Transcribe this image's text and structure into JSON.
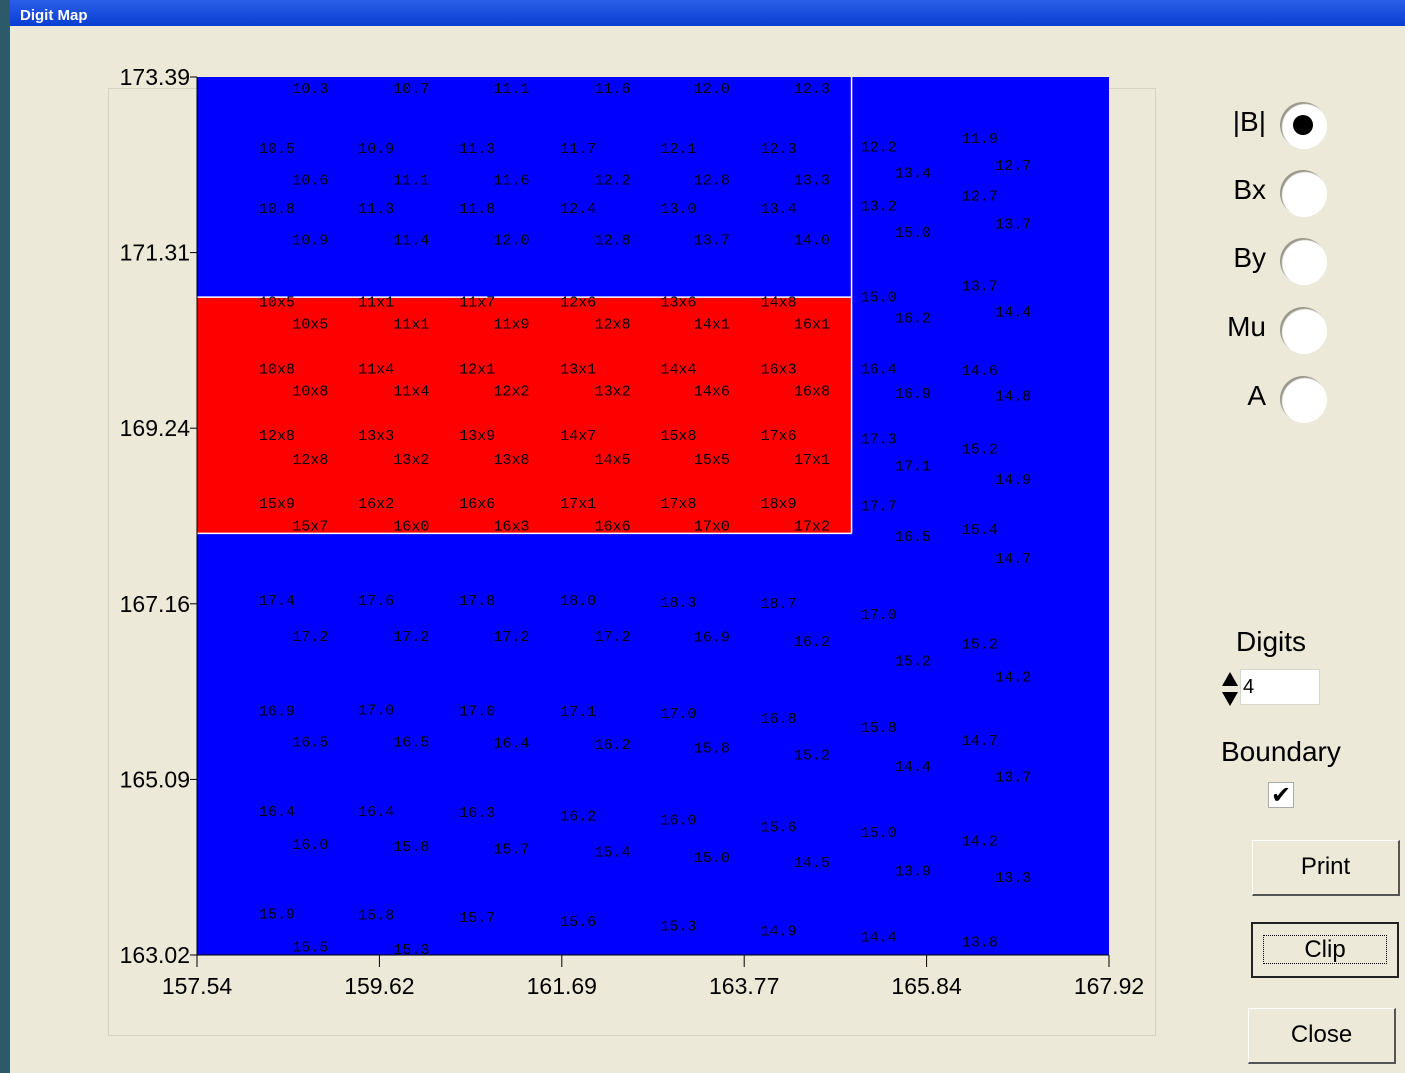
{
  "window": {
    "title": "Digit Map"
  },
  "radios": [
    {
      "label": "|B|",
      "selected": true
    },
    {
      "label": "Bx",
      "selected": false
    },
    {
      "label": "By",
      "selected": false
    },
    {
      "label": "Mu",
      "selected": false
    },
    {
      "label": "A",
      "selected": false
    }
  ],
  "digits": {
    "label": "Digits",
    "value": "4"
  },
  "boundary": {
    "label": "Boundary",
    "checked": true,
    "check_glyph": "✔"
  },
  "buttons": {
    "print": "Print",
    "clip": "Clip",
    "close": "Close"
  },
  "colors": {
    "field": "#0000ff",
    "highlight": "#ff0000",
    "boundary": "#ffffff"
  },
  "chart_data": {
    "type": "heatmap",
    "xlim": [
      157.54,
      167.92
    ],
    "ylim": [
      163.02,
      173.39
    ],
    "xticks": [
      "157.54",
      "159.62",
      "161.69",
      "163.77",
      "165.84",
      "167.92"
    ],
    "yticks": [
      "173.39",
      "171.31",
      "169.24",
      "167.16",
      "165.09",
      "163.02"
    ],
    "highlight_region": {
      "x": [
        157.54,
        164.99
      ],
      "y": [
        168.0,
        170.79
      ]
    },
    "boundary_x": 164.99,
    "cells": [
      {
        "x": 158.83,
        "y": 173.26,
        "t": "10.3"
      },
      {
        "x": 159.98,
        "y": 173.26,
        "t": "10.7"
      },
      {
        "x": 161.12,
        "y": 173.26,
        "t": "11.1"
      },
      {
        "x": 162.27,
        "y": 173.26,
        "t": "11.6"
      },
      {
        "x": 163.4,
        "y": 173.26,
        "t": "12.0"
      },
      {
        "x": 164.54,
        "y": 173.26,
        "t": "12.3"
      },
      {
        "x": 158.45,
        "y": 172.55,
        "t": "10.5"
      },
      {
        "x": 159.58,
        "y": 172.55,
        "t": "10.9"
      },
      {
        "x": 160.73,
        "y": 172.55,
        "t": "11.3"
      },
      {
        "x": 161.88,
        "y": 172.55,
        "t": "11.7"
      },
      {
        "x": 163.02,
        "y": 172.55,
        "t": "12.1"
      },
      {
        "x": 164.16,
        "y": 172.55,
        "t": "12.3"
      },
      {
        "x": 165.3,
        "y": 172.57,
        "t": "12.2"
      },
      {
        "x": 166.45,
        "y": 172.67,
        "t": "11.9"
      },
      {
        "x": 158.83,
        "y": 172.18,
        "t": "10.6"
      },
      {
        "x": 159.98,
        "y": 172.18,
        "t": "11.1"
      },
      {
        "x": 161.12,
        "y": 172.18,
        "t": "11.6"
      },
      {
        "x": 162.27,
        "y": 172.18,
        "t": "12.2"
      },
      {
        "x": 163.4,
        "y": 172.18,
        "t": "12.8"
      },
      {
        "x": 164.54,
        "y": 172.18,
        "t": "13.3"
      },
      {
        "x": 165.69,
        "y": 172.26,
        "t": "13.4"
      },
      {
        "x": 166.83,
        "y": 172.35,
        "t": "12.7"
      },
      {
        "x": 158.45,
        "y": 171.84,
        "t": "10.8"
      },
      {
        "x": 159.58,
        "y": 171.84,
        "t": "11.3"
      },
      {
        "x": 160.73,
        "y": 171.84,
        "t": "11.8"
      },
      {
        "x": 161.88,
        "y": 171.84,
        "t": "12.4"
      },
      {
        "x": 163.02,
        "y": 171.84,
        "t": "13.0"
      },
      {
        "x": 164.16,
        "y": 171.84,
        "t": "13.4"
      },
      {
        "x": 165.3,
        "y": 171.87,
        "t": "13.2"
      },
      {
        "x": 166.45,
        "y": 171.99,
        "t": "12.7"
      },
      {
        "x": 158.83,
        "y": 171.47,
        "t": "10.9"
      },
      {
        "x": 159.98,
        "y": 171.47,
        "t": "11.4"
      },
      {
        "x": 161.12,
        "y": 171.47,
        "t": "12.0"
      },
      {
        "x": 162.27,
        "y": 171.47,
        "t": "12.8"
      },
      {
        "x": 163.4,
        "y": 171.47,
        "t": "13.7"
      },
      {
        "x": 164.54,
        "y": 171.47,
        "t": "14.0"
      },
      {
        "x": 165.69,
        "y": 171.56,
        "t": "15.0"
      },
      {
        "x": 166.83,
        "y": 171.66,
        "t": "13.7"
      },
      {
        "x": 158.45,
        "y": 170.74,
        "t": "10x5"
      },
      {
        "x": 159.58,
        "y": 170.74,
        "t": "11x1"
      },
      {
        "x": 160.73,
        "y": 170.74,
        "t": "11x7"
      },
      {
        "x": 161.88,
        "y": 170.74,
        "t": "12x6"
      },
      {
        "x": 163.02,
        "y": 170.74,
        "t": "13x6"
      },
      {
        "x": 164.16,
        "y": 170.74,
        "t": "14x8"
      },
      {
        "x": 165.3,
        "y": 170.8,
        "t": "15.0"
      },
      {
        "x": 166.45,
        "y": 170.93,
        "t": "13.7"
      },
      {
        "x": 158.83,
        "y": 170.48,
        "t": "10x5"
      },
      {
        "x": 159.98,
        "y": 170.48,
        "t": "11x1"
      },
      {
        "x": 161.12,
        "y": 170.48,
        "t": "11x9"
      },
      {
        "x": 162.27,
        "y": 170.48,
        "t": "12x8"
      },
      {
        "x": 163.4,
        "y": 170.48,
        "t": "14x1"
      },
      {
        "x": 164.54,
        "y": 170.48,
        "t": "16x1"
      },
      {
        "x": 165.69,
        "y": 170.55,
        "t": "16.2"
      },
      {
        "x": 166.83,
        "y": 170.62,
        "t": "14.4"
      },
      {
        "x": 158.45,
        "y": 169.95,
        "t": "10x8"
      },
      {
        "x": 159.58,
        "y": 169.95,
        "t": "11x4"
      },
      {
        "x": 160.73,
        "y": 169.95,
        "t": "12x1"
      },
      {
        "x": 161.88,
        "y": 169.95,
        "t": "13x1"
      },
      {
        "x": 163.02,
        "y": 169.95,
        "t": "14x4"
      },
      {
        "x": 164.16,
        "y": 169.95,
        "t": "16x3"
      },
      {
        "x": 165.3,
        "y": 169.95,
        "t": "16.4"
      },
      {
        "x": 166.45,
        "y": 169.93,
        "t": "14.6"
      },
      {
        "x": 158.83,
        "y": 169.69,
        "t": "10x8"
      },
      {
        "x": 159.98,
        "y": 169.69,
        "t": "11x4"
      },
      {
        "x": 161.12,
        "y": 169.69,
        "t": "12x2"
      },
      {
        "x": 162.27,
        "y": 169.69,
        "t": "13x2"
      },
      {
        "x": 163.4,
        "y": 169.69,
        "t": "14x6"
      },
      {
        "x": 164.54,
        "y": 169.69,
        "t": "16x8"
      },
      {
        "x": 165.69,
        "y": 169.66,
        "t": "16.9"
      },
      {
        "x": 166.83,
        "y": 169.63,
        "t": "14.8"
      },
      {
        "x": 158.45,
        "y": 169.16,
        "t": "12x8"
      },
      {
        "x": 159.58,
        "y": 169.16,
        "t": "13x3"
      },
      {
        "x": 160.73,
        "y": 169.16,
        "t": "13x9"
      },
      {
        "x": 161.88,
        "y": 169.16,
        "t": "14x7"
      },
      {
        "x": 163.02,
        "y": 169.16,
        "t": "15x8"
      },
      {
        "x": 164.16,
        "y": 169.16,
        "t": "17x6"
      },
      {
        "x": 165.3,
        "y": 169.12,
        "t": "17.3"
      },
      {
        "x": 166.45,
        "y": 169.0,
        "t": "15.2"
      },
      {
        "x": 158.83,
        "y": 168.88,
        "t": "12x8"
      },
      {
        "x": 159.98,
        "y": 168.88,
        "t": "13x2"
      },
      {
        "x": 161.12,
        "y": 168.88,
        "t": "13x8"
      },
      {
        "x": 162.27,
        "y": 168.88,
        "t": "14x5"
      },
      {
        "x": 163.4,
        "y": 168.88,
        "t": "15x5"
      },
      {
        "x": 164.54,
        "y": 168.88,
        "t": "17x1"
      },
      {
        "x": 165.69,
        "y": 168.8,
        "t": "17.1"
      },
      {
        "x": 166.83,
        "y": 168.64,
        "t": "14.9"
      },
      {
        "x": 158.45,
        "y": 168.36,
        "t": "15x9"
      },
      {
        "x": 159.58,
        "y": 168.36,
        "t": "16x2"
      },
      {
        "x": 160.73,
        "y": 168.36,
        "t": "16x6"
      },
      {
        "x": 161.88,
        "y": 168.36,
        "t": "17x1"
      },
      {
        "x": 163.02,
        "y": 168.36,
        "t": "17x8"
      },
      {
        "x": 164.16,
        "y": 168.36,
        "t": "18x9"
      },
      {
        "x": 165.3,
        "y": 168.33,
        "t": "17.7"
      },
      {
        "x": 166.45,
        "y": 168.05,
        "t": "15.4"
      },
      {
        "x": 158.83,
        "y": 168.09,
        "t": "15x7"
      },
      {
        "x": 159.98,
        "y": 168.09,
        "t": "16x0"
      },
      {
        "x": 161.12,
        "y": 168.09,
        "t": "16x3"
      },
      {
        "x": 162.27,
        "y": 168.09,
        "t": "16x6"
      },
      {
        "x": 163.4,
        "y": 168.09,
        "t": "17x0"
      },
      {
        "x": 164.54,
        "y": 168.09,
        "t": "17x2"
      },
      {
        "x": 165.69,
        "y": 167.97,
        "t": "16.5"
      },
      {
        "x": 166.83,
        "y": 167.71,
        "t": "14.7"
      },
      {
        "x": 158.45,
        "y": 167.21,
        "t": "17.4"
      },
      {
        "x": 159.58,
        "y": 167.21,
        "t": "17.6"
      },
      {
        "x": 160.73,
        "y": 167.21,
        "t": "17.8"
      },
      {
        "x": 161.88,
        "y": 167.21,
        "t": "18.0"
      },
      {
        "x": 163.02,
        "y": 167.19,
        "t": "18.3"
      },
      {
        "x": 164.16,
        "y": 167.18,
        "t": "18.7"
      },
      {
        "x": 165.3,
        "y": 167.05,
        "t": "17.0"
      },
      {
        "x": 166.45,
        "y": 166.7,
        "t": "15.2"
      },
      {
        "x": 158.83,
        "y": 166.79,
        "t": "17.2"
      },
      {
        "x": 159.98,
        "y": 166.79,
        "t": "17.2"
      },
      {
        "x": 161.12,
        "y": 166.79,
        "t": "17.2"
      },
      {
        "x": 162.27,
        "y": 166.79,
        "t": "17.2"
      },
      {
        "x": 163.4,
        "y": 166.78,
        "t": "16.9"
      },
      {
        "x": 164.54,
        "y": 166.73,
        "t": "16.2"
      },
      {
        "x": 165.69,
        "y": 166.5,
        "t": "15.2"
      },
      {
        "x": 166.83,
        "y": 166.31,
        "t": "14.2"
      },
      {
        "x": 158.45,
        "y": 165.91,
        "t": "16.9"
      },
      {
        "x": 159.58,
        "y": 165.92,
        "t": "17.0"
      },
      {
        "x": 160.73,
        "y": 165.91,
        "t": "17.0"
      },
      {
        "x": 161.88,
        "y": 165.9,
        "t": "17.1"
      },
      {
        "x": 163.02,
        "y": 165.88,
        "t": "17.0"
      },
      {
        "x": 164.16,
        "y": 165.82,
        "t": "16.8"
      },
      {
        "x": 165.3,
        "y": 165.71,
        "t": "15.8"
      },
      {
        "x": 166.45,
        "y": 165.56,
        "t": "14.7"
      },
      {
        "x": 158.83,
        "y": 165.54,
        "t": "16.5"
      },
      {
        "x": 159.98,
        "y": 165.54,
        "t": "16.5"
      },
      {
        "x": 161.12,
        "y": 165.53,
        "t": "16.4"
      },
      {
        "x": 162.27,
        "y": 165.51,
        "t": "16.2"
      },
      {
        "x": 163.4,
        "y": 165.47,
        "t": "15.8"
      },
      {
        "x": 164.54,
        "y": 165.39,
        "t": "15.2"
      },
      {
        "x": 165.69,
        "y": 165.25,
        "t": "14.4"
      },
      {
        "x": 166.83,
        "y": 165.13,
        "t": "13.7"
      },
      {
        "x": 158.45,
        "y": 164.72,
        "t": "16.4"
      },
      {
        "x": 159.58,
        "y": 164.72,
        "t": "16.4"
      },
      {
        "x": 160.73,
        "y": 164.71,
        "t": "16.3"
      },
      {
        "x": 161.88,
        "y": 164.67,
        "t": "16.2"
      },
      {
        "x": 163.02,
        "y": 164.62,
        "t": "16.0"
      },
      {
        "x": 164.16,
        "y": 164.54,
        "t": "15.6"
      },
      {
        "x": 165.3,
        "y": 164.47,
        "t": "15.0"
      },
      {
        "x": 166.45,
        "y": 164.37,
        "t": "14.2"
      },
      {
        "x": 158.83,
        "y": 164.33,
        "t": "16.0"
      },
      {
        "x": 159.98,
        "y": 164.31,
        "t": "15.8"
      },
      {
        "x": 161.12,
        "y": 164.28,
        "t": "15.7"
      },
      {
        "x": 162.27,
        "y": 164.24,
        "t": "15.4"
      },
      {
        "x": 163.4,
        "y": 164.18,
        "t": "15.0"
      },
      {
        "x": 164.54,
        "y": 164.12,
        "t": "14.5"
      },
      {
        "x": 165.69,
        "y": 164.02,
        "t": "13.9"
      },
      {
        "x": 166.83,
        "y": 163.94,
        "t": "13.3"
      },
      {
        "x": 158.45,
        "y": 163.51,
        "t": "15.9"
      },
      {
        "x": 159.58,
        "y": 163.5,
        "t": "15.8"
      },
      {
        "x": 160.73,
        "y": 163.47,
        "t": "15.7"
      },
      {
        "x": 161.88,
        "y": 163.42,
        "t": "15.6"
      },
      {
        "x": 163.02,
        "y": 163.37,
        "t": "15.3"
      },
      {
        "x": 164.16,
        "y": 163.31,
        "t": "14.9"
      },
      {
        "x": 165.3,
        "y": 163.24,
        "t": "14.4"
      },
      {
        "x": 166.45,
        "y": 163.18,
        "t": "13.8"
      },
      {
        "x": 158.83,
        "y": 163.12,
        "t": "15.5"
      },
      {
        "x": 159.98,
        "y": 163.09,
        "t": "15.3"
      }
    ]
  }
}
